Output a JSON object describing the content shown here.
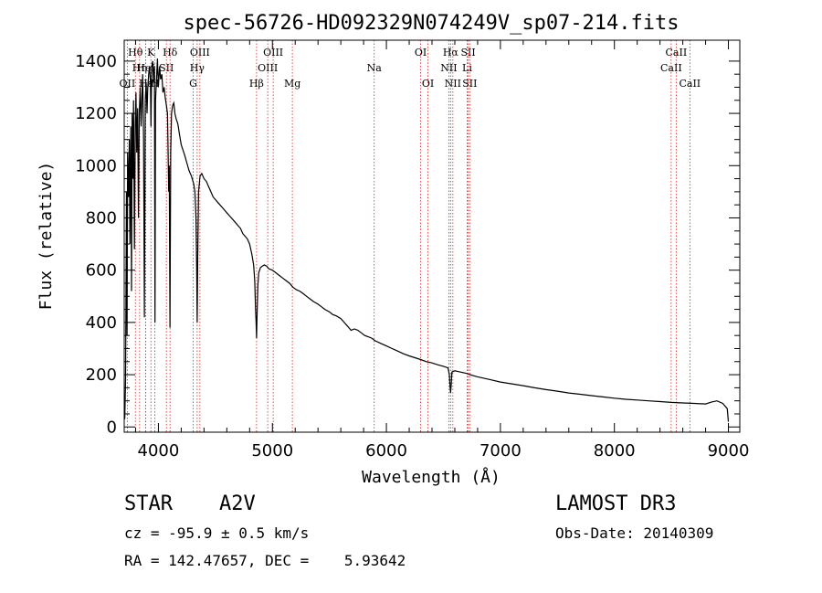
{
  "chart_data": {
    "type": "line",
    "title": "spec-56726-HD092329N074249V_sp07-214.fits",
    "xlabel": "Wavelength (Å)",
    "ylabel": "Flux (relative)",
    "xlim": [
      3700,
      9100
    ],
    "ylim": [
      -20,
      1480
    ],
    "x_ticks": [
      4000,
      5000,
      6000,
      7000,
      8000,
      9000
    ],
    "y_ticks": [
      0,
      200,
      400,
      600,
      800,
      1000,
      1200,
      1400
    ],
    "series": [
      {
        "name": "spectrum",
        "points": [
          [
            3705,
            30
          ],
          [
            3712,
            180
          ],
          [
            3720,
            900
          ],
          [
            3725,
            350
          ],
          [
            3730,
            1050
          ],
          [
            3738,
            880
          ],
          [
            3745,
            1100
          ],
          [
            3750,
            700
          ],
          [
            3758,
            1150
          ],
          [
            3764,
            520
          ],
          [
            3770,
            1200
          ],
          [
            3776,
            950
          ],
          [
            3782,
            1250
          ],
          [
            3790,
            680
          ],
          [
            3797,
            1150
          ],
          [
            3803,
            1280
          ],
          [
            3810,
            1050
          ],
          [
            3818,
            1220
          ],
          [
            3825,
            800
          ],
          [
            3832,
            1200
          ],
          [
            3840,
            1300
          ],
          [
            3848,
            1150
          ],
          [
            3855,
            1250
          ],
          [
            3862,
            1350
          ],
          [
            3870,
            1100
          ],
          [
            3877,
            420
          ],
          [
            3885,
            1250
          ],
          [
            3892,
            1320
          ],
          [
            3900,
            1200
          ],
          [
            3907,
            1300
          ],
          [
            3915,
            1350
          ],
          [
            3922,
            1380
          ],
          [
            3930,
            1320
          ],
          [
            3935,
            1150
          ],
          [
            3941,
            1380
          ],
          [
            3950,
            1400
          ],
          [
            3958,
            1320
          ],
          [
            3965,
            1380
          ],
          [
            3970,
            400
          ],
          [
            3975,
            1250
          ],
          [
            3985,
            1350
          ],
          [
            3992,
            1410
          ],
          [
            4000,
            1300
          ],
          [
            4010,
            1380
          ],
          [
            4020,
            1330
          ],
          [
            4030,
            1350
          ],
          [
            4040,
            1280
          ],
          [
            4050,
            1300
          ],
          [
            4060,
            1260
          ],
          [
            4070,
            1230
          ],
          [
            4080,
            1200
          ],
          [
            4090,
            900
          ],
          [
            4095,
            1000
          ],
          [
            4101,
            380
          ],
          [
            4108,
            1050
          ],
          [
            4115,
            1200
          ],
          [
            4125,
            1230
          ],
          [
            4135,
            1240
          ],
          [
            4145,
            1200
          ],
          [
            4155,
            1180
          ],
          [
            4170,
            1160
          ],
          [
            4185,
            1120
          ],
          [
            4200,
            1080
          ],
          [
            4215,
            1060
          ],
          [
            4230,
            1040
          ],
          [
            4250,
            1010
          ],
          [
            4270,
            980
          ],
          [
            4290,
            960
          ],
          [
            4310,
            930
          ],
          [
            4320,
            900
          ],
          [
            4330,
            800
          ],
          [
            4335,
            620
          ],
          [
            4340,
            400
          ],
          [
            4345,
            650
          ],
          [
            4352,
            900
          ],
          [
            4365,
            960
          ],
          [
            4380,
            970
          ],
          [
            4400,
            950
          ],
          [
            4420,
            940
          ],
          [
            4440,
            920
          ],
          [
            4460,
            900
          ],
          [
            4480,
            880
          ],
          [
            4500,
            870
          ],
          [
            4520,
            860
          ],
          [
            4540,
            850
          ],
          [
            4560,
            840
          ],
          [
            4580,
            830
          ],
          [
            4600,
            820
          ],
          [
            4620,
            810
          ],
          [
            4640,
            800
          ],
          [
            4660,
            790
          ],
          [
            4680,
            780
          ],
          [
            4700,
            770
          ],
          [
            4720,
            760
          ],
          [
            4740,
            740
          ],
          [
            4760,
            730
          ],
          [
            4780,
            720
          ],
          [
            4800,
            700
          ],
          [
            4820,
            660
          ],
          [
            4835,
            620
          ],
          [
            4845,
            560
          ],
          [
            4852,
            450
          ],
          [
            4857,
            400
          ],
          [
            4861,
            340
          ],
          [
            4865,
            420
          ],
          [
            4872,
            540
          ],
          [
            4880,
            590
          ],
          [
            4895,
            610
          ],
          [
            4910,
            615
          ],
          [
            4930,
            620
          ],
          [
            4950,
            615
          ],
          [
            4970,
            605
          ],
          [
            5000,
            600
          ],
          [
            5030,
            590
          ],
          [
            5060,
            580
          ],
          [
            5090,
            570
          ],
          [
            5120,
            560
          ],
          [
            5150,
            550
          ],
          [
            5180,
            535
          ],
          [
            5210,
            525
          ],
          [
            5240,
            520
          ],
          [
            5270,
            510
          ],
          [
            5300,
            500
          ],
          [
            5330,
            490
          ],
          [
            5360,
            480
          ],
          [
            5400,
            470
          ],
          [
            5430,
            460
          ],
          [
            5460,
            450
          ],
          [
            5500,
            440
          ],
          [
            5530,
            430
          ],
          [
            5560,
            425
          ],
          [
            5600,
            415
          ],
          [
            5630,
            400
          ],
          [
            5650,
            390
          ],
          [
            5670,
            380
          ],
          [
            5690,
            370
          ],
          [
            5720,
            375
          ],
          [
            5750,
            370
          ],
          [
            5780,
            360
          ],
          [
            5810,
            350
          ],
          [
            5840,
            345
          ],
          [
            5870,
            340
          ],
          [
            5900,
            330
          ],
          [
            5950,
            320
          ],
          [
            6000,
            310
          ],
          [
            6050,
            300
          ],
          [
            6100,
            290
          ],
          [
            6150,
            280
          ],
          [
            6200,
            272
          ],
          [
            6250,
            265
          ],
          [
            6300,
            258
          ],
          [
            6350,
            250
          ],
          [
            6400,
            245
          ],
          [
            6450,
            238
          ],
          [
            6500,
            232
          ],
          [
            6540,
            226
          ],
          [
            6552,
            200
          ],
          [
            6558,
            160
          ],
          [
            6563,
            130
          ],
          [
            6568,
            160
          ],
          [
            6575,
            210
          ],
          [
            6600,
            215
          ],
          [
            6650,
            210
          ],
          [
            6700,
            205
          ],
          [
            6750,
            198
          ],
          [
            6800,
            192
          ],
          [
            6900,
            182
          ],
          [
            7000,
            172
          ],
          [
            7100,
            165
          ],
          [
            7200,
            158
          ],
          [
            7300,
            150
          ],
          [
            7400,
            143
          ],
          [
            7500,
            137
          ],
          [
            7600,
            130
          ],
          [
            7700,
            125
          ],
          [
            7800,
            120
          ],
          [
            7900,
            115
          ],
          [
            8000,
            110
          ],
          [
            8100,
            106
          ],
          [
            8200,
            103
          ],
          [
            8300,
            100
          ],
          [
            8400,
            97
          ],
          [
            8500,
            94
          ],
          [
            8600,
            92
          ],
          [
            8700,
            90
          ],
          [
            8800,
            88
          ],
          [
            8850,
            95
          ],
          [
            8900,
            100
          ],
          [
            8950,
            90
          ],
          [
            8990,
            70
          ],
          [
            9000,
            20
          ]
        ]
      }
    ],
    "line_markers": [
      {
        "name": "Hθ",
        "wavelength": 3798,
        "row": 1
      },
      {
        "name": "OII",
        "wavelength": 3727,
        "row": 3
      },
      {
        "name": "Hη",
        "wavelength": 3835,
        "row": 2
      },
      {
        "name": "HeI",
        "wavelength": 3889,
        "row": 2
      },
      {
        "name": "Hε",
        "wavelength": 3889,
        "row": 3
      },
      {
        "name": "K",
        "wavelength": 3934,
        "row": 1
      },
      {
        "name": "H",
        "wavelength": 3969,
        "row": 3
      },
      {
        "name": "SII",
        "wavelength": 4070,
        "row": 2
      },
      {
        "name": "Hδ",
        "wavelength": 4102,
        "row": 1
      },
      {
        "name": "OIII",
        "wavelength": 4364,
        "row": 1
      },
      {
        "name": "Hγ",
        "wavelength": 4340,
        "row": 2
      },
      {
        "name": "G",
        "wavelength": 4305,
        "row": 3
      },
      {
        "name": "Hβ",
        "wavelength": 4861,
        "row": 3
      },
      {
        "name": "OIII",
        "wavelength": 5007,
        "row": 1
      },
      {
        "name": "OIII",
        "wavelength": 4959,
        "row": 2
      },
      {
        "name": "Mg",
        "wavelength": 5175,
        "row": 3
      },
      {
        "name": "Na",
        "wavelength": 5893,
        "row": 2
      },
      {
        "name": "OI",
        "wavelength": 6300,
        "row": 1
      },
      {
        "name": "OI",
        "wavelength": 6364,
        "row": 3
      },
      {
        "name": "Hα",
        "wavelength": 6563,
        "row": 1
      },
      {
        "name": "SII",
        "wavelength": 6717,
        "row": 1
      },
      {
        "name": "NII",
        "wavelength": 6548,
        "row": 2
      },
      {
        "name": "Li",
        "wavelength": 6708,
        "row": 2
      },
      {
        "name": "NII",
        "wavelength": 6583,
        "row": 3
      },
      {
        "name": "SII",
        "wavelength": 6731,
        "row": 3
      },
      {
        "name": "CaII",
        "wavelength": 8542,
        "row": 1
      },
      {
        "name": "CaII",
        "wavelength": 8498,
        "row": 2
      },
      {
        "name": "CaII",
        "wavelength": 8662,
        "row": 3
      }
    ]
  },
  "info": {
    "object_class": "STAR",
    "subclass": "A2V",
    "survey": "LAMOST DR3",
    "redshift": "cz = -95.9 ± 0.5 km/s",
    "obs_date": "Obs-Date: 20140309",
    "coords": "RA = 142.47657, DEC =    5.93642"
  }
}
